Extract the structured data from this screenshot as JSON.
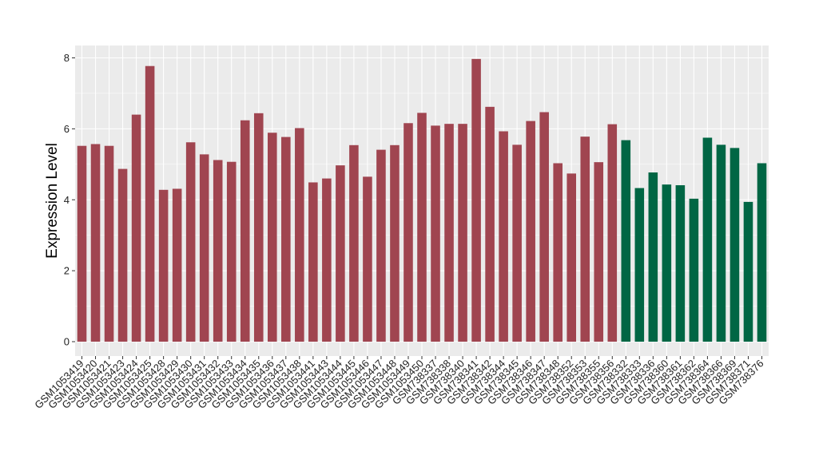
{
  "chart_data": {
    "type": "bar",
    "title": "",
    "xlabel": "",
    "ylabel": "Expression Level",
    "ylim": [
      0,
      8.2
    ],
    "yticks": [
      0,
      2,
      4,
      6,
      8
    ],
    "grid": true,
    "colors": {
      "panel_bg": "#EBEBEB",
      "grid": "#FFFFFF",
      "bar_red": "#A04550",
      "bar_green": "#006644"
    },
    "categories": [
      "GSM1053419",
      "GSM1053420",
      "GSM1053421",
      "GSM1053423",
      "GSM1053424",
      "GSM1053425",
      "GSM1053428",
      "GSM1053429",
      "GSM1053430",
      "GSM1053431",
      "GSM1053432",
      "GSM1053433",
      "GSM1053434",
      "GSM1053435",
      "GSM1053436",
      "GSM1053437",
      "GSM1053438",
      "GSM1053441",
      "GSM1053443",
      "GSM1053444",
      "GSM1053445",
      "GSM1053446",
      "GSM1053447",
      "GSM1053448",
      "GSM1053449",
      "GSM1053450",
      "GSM738337",
      "GSM738338",
      "GSM738340",
      "GSM738341",
      "GSM738342",
      "GSM738344",
      "GSM738345",
      "GSM738346",
      "GSM738347",
      "GSM738348",
      "GSM738352",
      "GSM738353",
      "GSM738355",
      "GSM738356",
      "GSM738332",
      "GSM738333",
      "GSM738336",
      "GSM738360",
      "GSM738361",
      "GSM738362",
      "GSM738364",
      "GSM738366",
      "GSM738369",
      "GSM738371",
      "GSM738376"
    ],
    "values": [
      5.52,
      5.57,
      5.52,
      4.87,
      6.4,
      7.77,
      4.28,
      4.31,
      5.62,
      5.28,
      5.12,
      5.07,
      6.24,
      6.44,
      5.89,
      5.77,
      6.02,
      4.49,
      4.6,
      4.97,
      5.54,
      4.65,
      5.41,
      5.54,
      6.16,
      6.45,
      6.09,
      6.14,
      6.14,
      7.97,
      6.62,
      5.93,
      5.55,
      6.22,
      6.47,
      5.03,
      4.74,
      5.78,
      5.06,
      6.13,
      5.68,
      4.33,
      4.77,
      4.43,
      4.41,
      4.03,
      5.75,
      5.55,
      5.46,
      3.94,
      5.03
    ],
    "groups": [
      "red",
      "red",
      "red",
      "red",
      "red",
      "red",
      "red",
      "red",
      "red",
      "red",
      "red",
      "red",
      "red",
      "red",
      "red",
      "red",
      "red",
      "red",
      "red",
      "red",
      "red",
      "red",
      "red",
      "red",
      "red",
      "red",
      "red",
      "red",
      "red",
      "red",
      "red",
      "red",
      "red",
      "red",
      "red",
      "red",
      "red",
      "red",
      "red",
      "red",
      "green",
      "green",
      "green",
      "green",
      "green",
      "green",
      "green",
      "green",
      "green",
      "green",
      "green"
    ]
  }
}
